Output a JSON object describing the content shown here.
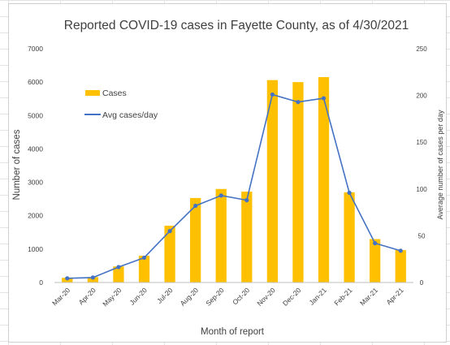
{
  "chart_data": {
    "type": "bar+line",
    "title": "Reported COVID-19 cases in Fayette County, as of 4/30/2021",
    "xlabel": "Month of report",
    "ylabel": "Number of cases",
    "y2label": "Average number of cases per day",
    "categories": [
      "Mar-20",
      "Apr-20",
      "May-20",
      "Jun-20",
      "Jul-20",
      "Aug-20",
      "Sep-20",
      "Oct-20",
      "Nov-20",
      "Dec-20",
      "Jan-21",
      "Feb-21",
      "Mar-21",
      "Apr-21"
    ],
    "ylim": [
      0,
      7000
    ],
    "yticks": [
      "0",
      "1000",
      "2000",
      "3000",
      "4000",
      "5000",
      "6000",
      "7000"
    ],
    "y2lim": [
      0,
      250
    ],
    "y2ticks": [
      "0",
      "50",
      "100",
      "150",
      "200",
      "250"
    ],
    "series": [
      {
        "name": "Cases",
        "type": "bar",
        "axis": "left",
        "color": "#ffc000",
        "values": [
          140,
          160,
          480,
          800,
          1700,
          2530,
          2800,
          2720,
          6060,
          6000,
          6150,
          2700,
          1300,
          970
        ]
      },
      {
        "name": "Avg cases/day",
        "type": "line",
        "axis": "right",
        "color": "#4472c4",
        "values": [
          4.5,
          5.3,
          16.5,
          26.5,
          55,
          82,
          93,
          88,
          201,
          193,
          197,
          96,
          42,
          34
        ]
      }
    ],
    "legend_position": "upper-left",
    "grid": false
  }
}
